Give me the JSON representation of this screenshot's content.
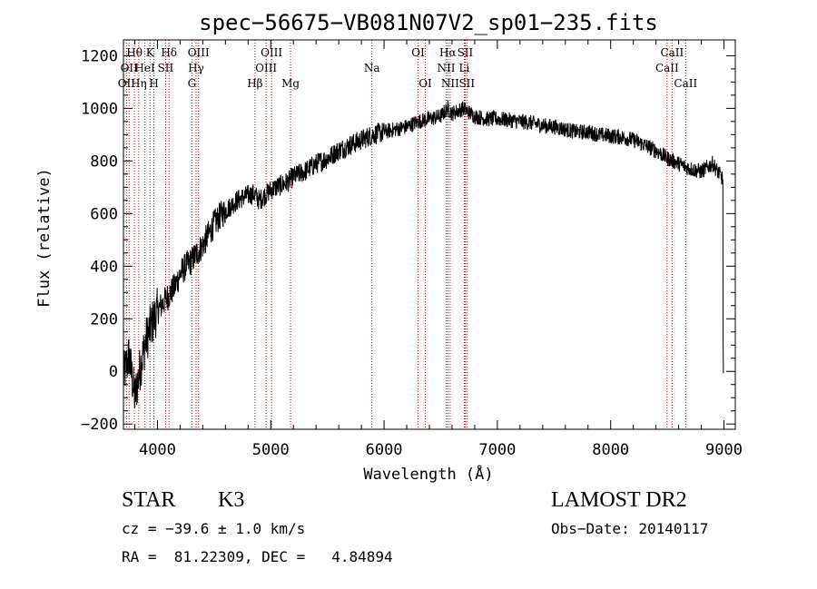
{
  "chart_data": {
    "type": "line",
    "title": "spec−56675−VB081N07V2_sp01−235.fits",
    "xlabel": "Wavelength (Å)",
    "ylabel": "Flux (relative)",
    "xlim": [
      3700,
      9100
    ],
    "ylim": [
      -220,
      1260
    ],
    "x_ticks": [
      4000,
      5000,
      6000,
      7000,
      8000,
      9000
    ],
    "y_ticks": [
      -200,
      0,
      200,
      400,
      600,
      800,
      1000,
      1200
    ],
    "y_tick_labels": [
      "−200",
      "0",
      "200",
      "400",
      "600",
      "800",
      "1000",
      "1200"
    ],
    "grid": false,
    "line_color": "#000000",
    "marker_line_color": "#c00000",
    "spectrum": {
      "x": [
        3700,
        3750,
        3800,
        3850,
        3900,
        3950,
        4000,
        4050,
        4100,
        4150,
        4200,
        4250,
        4300,
        4350,
        4400,
        4450,
        4500,
        4550,
        4600,
        4650,
        4700,
        4750,
        4800,
        4850,
        4900,
        4950,
        5000,
        5050,
        5100,
        5150,
        5200,
        5300,
        5400,
        5500,
        5600,
        5700,
        5800,
        5900,
        6000,
        6100,
        6200,
        6300,
        6400,
        6500,
        6563,
        6600,
        6700,
        6800,
        6900,
        7000,
        7100,
        7200,
        7300,
        7400,
        7500,
        7600,
        7700,
        7800,
        7900,
        8000,
        8100,
        8200,
        8300,
        8400,
        8500,
        8600,
        8700,
        8800,
        8900,
        8990,
        9000
      ],
      "y": [
        -20,
        60,
        -100,
        20,
        120,
        180,
        230,
        260,
        290,
        320,
        370,
        400,
        420,
        450,
        480,
        520,
        560,
        590,
        610,
        630,
        650,
        660,
        670,
        675,
        650,
        670,
        690,
        700,
        710,
        720,
        740,
        760,
        790,
        810,
        840,
        860,
        880,
        900,
        910,
        920,
        930,
        950,
        960,
        970,
        1000,
        980,
        1000,
        970,
        960,
        960,
        955,
        950,
        945,
        935,
        930,
        920,
        910,
        910,
        900,
        895,
        890,
        880,
        860,
        840,
        810,
        790,
        770,
        760,
        790,
        730,
        -5
      ]
    },
    "line_markers": [
      {
        "x": 3727,
        "label": "OII",
        "row": 2
      },
      {
        "x": 3750,
        "label": "OII",
        "row": 1
      },
      {
        "x": 3797,
        "label": "Hθ",
        "row": 0
      },
      {
        "x": 3835,
        "label": "Hη",
        "row": 2
      },
      {
        "x": 3889,
        "label": "HeI",
        "row": 1
      },
      {
        "x": 3934,
        "label": "K",
        "row": 0
      },
      {
        "x": 3969,
        "label": "H",
        "row": 2
      },
      {
        "x": 4072,
        "label": "SII",
        "row": 1
      },
      {
        "x": 4102,
        "label": "Hδ",
        "row": 0
      },
      {
        "x": 4304,
        "label": "G",
        "row": 2
      },
      {
        "x": 4341,
        "label": "Hγ",
        "row": 1
      },
      {
        "x": 4363,
        "label": "OIII",
        "row": 0
      },
      {
        "x": 4861,
        "label": "Hβ",
        "row": 2
      },
      {
        "x": 4959,
        "label": "OIII",
        "row": 1
      },
      {
        "x": 5007,
        "label": "OIII",
        "row": 0
      },
      {
        "x": 5175,
        "label": "Mg",
        "row": 2
      },
      {
        "x": 5893,
        "label": "Na",
        "row": 1
      },
      {
        "x": 6300,
        "label": "OI",
        "row": 0
      },
      {
        "x": 6364,
        "label": "OI",
        "row": 2
      },
      {
        "x": 6548,
        "label": "NII",
        "row": 1
      },
      {
        "x": 6563,
        "label": "Hα",
        "row": 0
      },
      {
        "x": 6583,
        "label": "NII",
        "row": 2
      },
      {
        "x": 6708,
        "label": "Li",
        "row": 1
      },
      {
        "x": 6716,
        "label": "SII",
        "row": 0
      },
      {
        "x": 6731,
        "label": "SII",
        "row": 2
      },
      {
        "x": 8498,
        "label": "CaII",
        "row": 1
      },
      {
        "x": 8542,
        "label": "CaII",
        "row": 0
      },
      {
        "x": 8662,
        "label": "CaII",
        "row": 2
      }
    ]
  },
  "info": {
    "class_label": "STAR",
    "subclass": "K3",
    "survey": "LAMOST DR2",
    "cz": "cz = −39.6 ± 1.0 km/s",
    "obs_date": "Obs−Date: 20140117",
    "coords": "RA =  81.22309, DEC =   4.84894"
  }
}
